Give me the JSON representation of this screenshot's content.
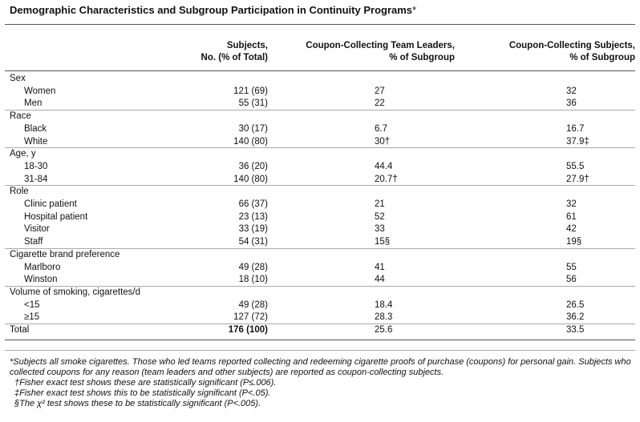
{
  "title": "Demographic Characteristics and Subgroup Participation in Continuity Programs",
  "title_marker": "*",
  "table": {
    "headers": [
      [
        "Subjects,",
        "No. (% of Total)"
      ],
      [
        "Coupon-Collecting Team Leaders,",
        "% of Subgroup"
      ],
      [
        "Coupon-Collecting Subjects,",
        "% of Subgroup"
      ]
    ],
    "sections": [
      {
        "label": "Sex",
        "rows": [
          [
            "Women",
            "121 (69)",
            "27",
            "32"
          ],
          [
            "Men",
            "55 (31)",
            "22",
            "36"
          ]
        ]
      },
      {
        "label": "Race",
        "rows": [
          [
            "Black",
            "30 (17)",
            "6.7",
            "16.7"
          ],
          [
            "White",
            "140 (80)",
            "30†",
            "37.9‡"
          ]
        ]
      },
      {
        "label": "Age, y",
        "rows": [
          [
            "18-30",
            "36 (20)",
            "44.4",
            "55.5"
          ],
          [
            "31-84",
            "140 (80)",
            "20.7†",
            "27.9†"
          ]
        ]
      },
      {
        "label": "Role",
        "rows": [
          [
            "Clinic patient",
            "66 (37)",
            "21",
            "32"
          ],
          [
            "Hospital patient",
            "23 (13)",
            "52",
            "61"
          ],
          [
            "Visitor",
            "33 (19)",
            "33",
            "42"
          ],
          [
            "Staff",
            "54 (31)",
            "15§",
            "19§"
          ]
        ]
      },
      {
        "label": "Cigarette brand preference",
        "rows": [
          [
            "Marlboro",
            "49 (28)",
            "41",
            "55"
          ],
          [
            "Winston",
            "18 (10)",
            "44",
            "56"
          ]
        ]
      },
      {
        "label": "Volume of smoking, cigarettes/d",
        "rows": [
          [
            "<15",
            "49 (28)",
            "18.4",
            "26.5"
          ],
          [
            "≥15",
            "127 (72)",
            "28.3",
            "36.2"
          ]
        ]
      }
    ],
    "total": [
      "Total",
      "176 (100)",
      "25.6",
      "33.5"
    ]
  },
  "footnotes": [
    "*Subjects all smoke cigarettes. Those who led teams reported collecting and redeeming cigarette proofs of purchase (coupons) for personal gain. Subjects who collected coupons for any reason (team leaders and other subjects) are reported as coupon-collecting subjects.",
    "†Fisher exact test shows these are statistically significant (P≤.006).",
    "‡Fisher exact test shows this to be statistically significant (P<.05).",
    "§The χ² test shows these to be statistically significant (P<.005)."
  ]
}
